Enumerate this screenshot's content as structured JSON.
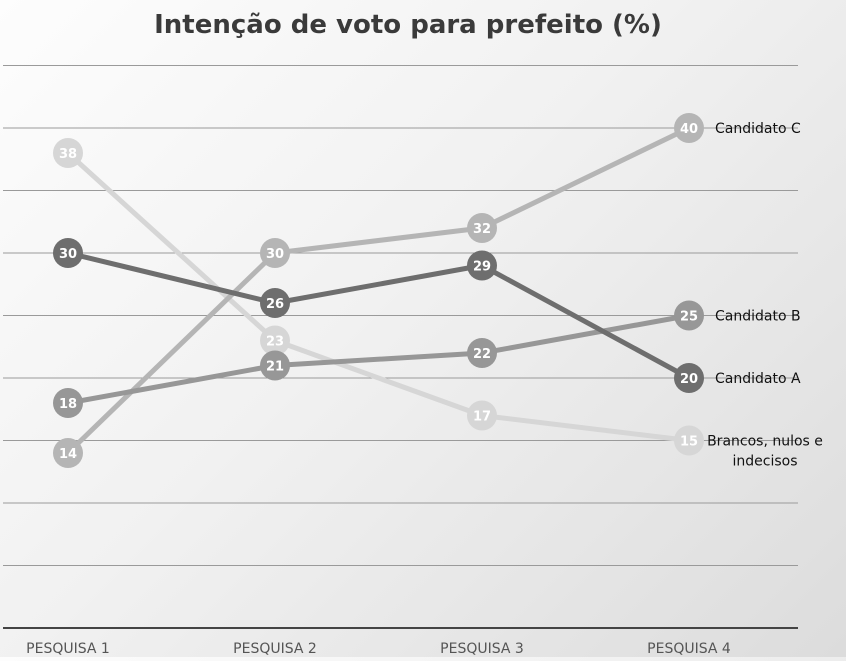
{
  "chart_data": {
    "type": "line",
    "title": "Intenção de voto para prefeito (%)",
    "xlabel": "",
    "ylabel": "",
    "categories": [
      "PESQUISA 1",
      "PESQUISA 2",
      "PESQUISA 3",
      "PESQUISA 4"
    ],
    "ylim": [
      0,
      45
    ],
    "grid": true,
    "legend": "series labels at right end of lines",
    "data_labels": true,
    "series": [
      {
        "name": "Brancos, nulos e indecisos",
        "values": [
          38,
          23,
          17,
          15
        ],
        "color": "#d6d6d6",
        "label_lines": [
          "Brancos, nulos e",
          "indecisos"
        ]
      },
      {
        "name": "Candidato C",
        "values": [
          14,
          30,
          32,
          40
        ],
        "color": "#b5b5b5",
        "label_lines": [
          "Candidato C"
        ]
      },
      {
        "name": "Candidato B",
        "values": [
          18,
          21,
          22,
          25
        ],
        "color": "#979797",
        "label_lines": [
          "Candidato B"
        ]
      },
      {
        "name": "Candidato A",
        "values": [
          30,
          26,
          29,
          20
        ],
        "color": "#6e6e6e",
        "label_lines": [
          "Candidato A"
        ]
      }
    ]
  }
}
